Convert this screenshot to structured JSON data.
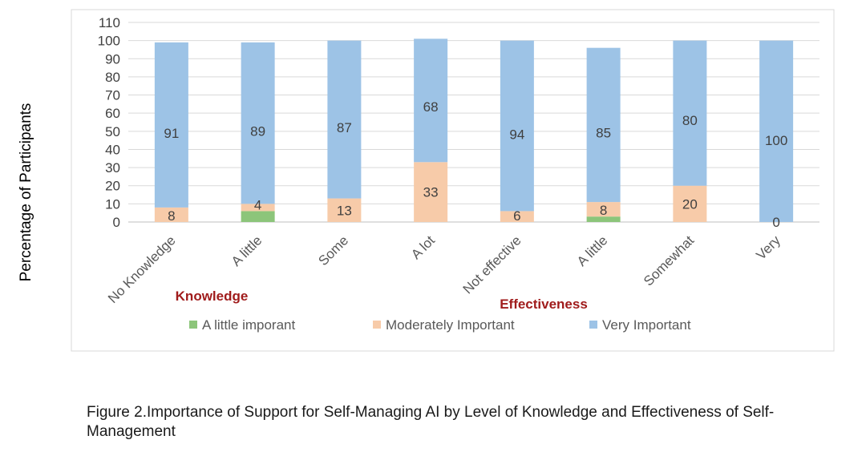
{
  "chart_data": {
    "type": "bar",
    "stacked": true,
    "ylabel": "Percentage of Participants",
    "ylim": [
      0,
      110
    ],
    "yticks": [
      0,
      10,
      20,
      30,
      40,
      50,
      60,
      70,
      80,
      90,
      100,
      110
    ],
    "grid": true,
    "legend_position": "bottom",
    "categories": [
      "No Knowledge",
      "A little",
      "Some",
      "A lot",
      "Not effective",
      "A little",
      "Somewhat",
      "Very"
    ],
    "groups": [
      {
        "label": "Knowledge",
        "categories": [
          0,
          1,
          2,
          3
        ]
      },
      {
        "label": "Effectiveness",
        "categories": [
          4,
          5,
          6,
          7
        ]
      }
    ],
    "series": [
      {
        "name": "A little imporant",
        "color": "#8cc57a",
        "values": [
          0,
          6,
          0,
          0,
          0,
          3,
          0,
          0
        ],
        "labels": [
          "",
          "",
          "",
          "",
          "",
          "",
          "",
          ""
        ]
      },
      {
        "name": "Moderately Important",
        "color": "#f7cba9",
        "values": [
          8,
          4,
          13,
          33,
          6,
          8,
          20,
          0
        ],
        "labels": [
          "8",
          "4",
          "13",
          "33",
          "6",
          "8",
          "20",
          "0"
        ]
      },
      {
        "name": "Very Important",
        "color": "#9dc3e6",
        "values": [
          91,
          89,
          87,
          68,
          94,
          85,
          80,
          100
        ],
        "labels": [
          "91",
          "89",
          "87",
          "68",
          "94",
          "85",
          "80",
          "100"
        ]
      }
    ]
  },
  "caption": "Figure 2.Importance of Support for Self-Managing AI by Level of Knowledge and Effectiveness of Self-Management"
}
